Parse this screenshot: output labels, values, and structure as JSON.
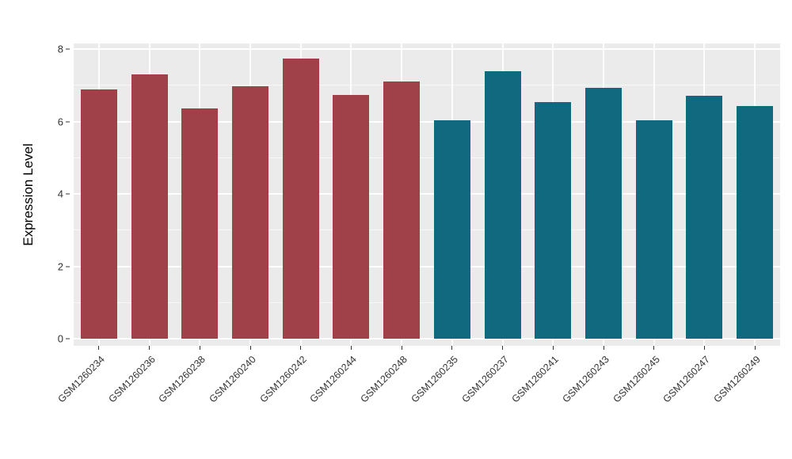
{
  "figure": {
    "background": "#FFFFFF",
    "panel_background": "#EBEBEB",
    "gridline_color": "#FFFFFF"
  },
  "chart_data": {
    "type": "bar",
    "title": "",
    "xlabel": "",
    "ylabel": "Expression Level",
    "ylim": [
      0,
      8
    ],
    "yticks": [
      0,
      2,
      4,
      6,
      8
    ],
    "minor_yticks": [
      1,
      3,
      5,
      7
    ],
    "grid": "on",
    "legend": "none",
    "categories": [
      "GSM1260234",
      "GSM1260236",
      "GSM1260238",
      "GSM1260240",
      "GSM1260242",
      "GSM1260244",
      "GSM1260248",
      "GSM1260235",
      "GSM1260237",
      "GSM1260241",
      "GSM1260243",
      "GSM1260245",
      "GSM1260247",
      "GSM1260249"
    ],
    "values": [
      6.88,
      7.3,
      6.35,
      6.97,
      7.74,
      6.73,
      7.1,
      6.03,
      7.38,
      6.53,
      6.92,
      6.03,
      6.7,
      6.43
    ],
    "colors": [
      "#A04049",
      "#A04049",
      "#A04049",
      "#A04049",
      "#A04049",
      "#A04049",
      "#A04049",
      "#11697F",
      "#11697F",
      "#11697F",
      "#11697F",
      "#11697F",
      "#11697F",
      "#11697F"
    ],
    "group_colors": {
      "group1": "#A04049",
      "group2": "#11697F"
    }
  }
}
